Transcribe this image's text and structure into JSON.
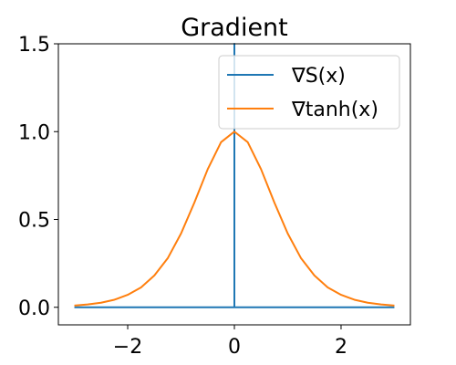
{
  "chart_data": {
    "type": "line",
    "title": "Gradient",
    "xlabel": "",
    "ylabel": "",
    "xlim": [
      -3.3,
      3.3
    ],
    "ylim": [
      -0.1,
      1.5
    ],
    "xticks": [
      -2,
      0,
      2
    ],
    "xtick_labels": [
      "−2",
      "0",
      "2"
    ],
    "yticks": [
      0.0,
      0.5,
      1.0,
      1.5
    ],
    "ytick_labels": [
      "0.0",
      "0.5",
      "1.0",
      "1.5"
    ],
    "grid": false,
    "legend_position": "top-right",
    "series": [
      {
        "name": "∇S(x)",
        "color": "#1f77b4",
        "kind": "step-impulse",
        "x": [
          -3,
          0,
          0,
          0,
          3
        ],
        "y": [
          0,
          0,
          1.5,
          0,
          0
        ]
      },
      {
        "name": "∇tanh(x)",
        "color": "#ff7f0e",
        "kind": "curve",
        "x": [
          -3,
          -2.75,
          -2.5,
          -2.25,
          -2,
          -1.75,
          -1.5,
          -1.25,
          -1,
          -0.75,
          -0.5,
          -0.25,
          0,
          0.25,
          0.5,
          0.75,
          1,
          1.25,
          1.5,
          1.75,
          2,
          2.25,
          2.5,
          2.75,
          3
        ],
        "y": [
          0.01,
          0.016,
          0.026,
          0.043,
          0.071,
          0.113,
          0.181,
          0.279,
          0.42,
          0.596,
          0.786,
          0.94,
          1.0,
          0.94,
          0.786,
          0.596,
          0.42,
          0.279,
          0.181,
          0.113,
          0.071,
          0.043,
          0.026,
          0.016,
          0.01
        ]
      }
    ]
  }
}
